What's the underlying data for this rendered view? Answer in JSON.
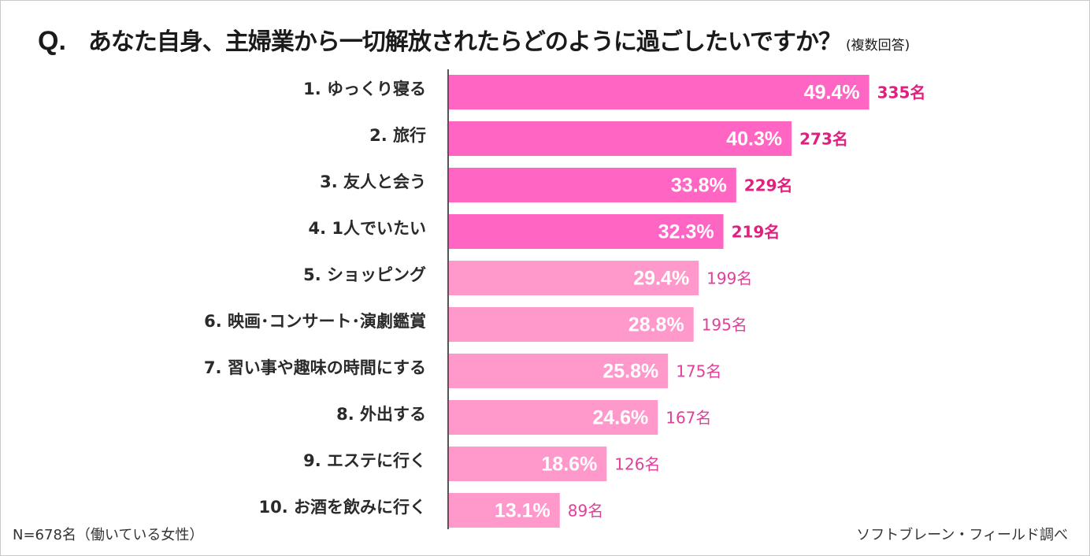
{
  "title": {
    "prefix": "Q.",
    "main": "あなた自身、主婦業から一切解放されたらどのように過ごしたいですか？",
    "note": "(複数回答)"
  },
  "footer": {
    "sample": "N=678名（働いている女性）",
    "source": "ソフトブレーン・フィールド調べ"
  },
  "colors": {
    "top_bar": "#ff66c4",
    "other_bar": "#ff99cc",
    "top_count": "#e0207f",
    "other_count": "#e0409a",
    "axis": "#555555"
  },
  "chart_data": {
    "type": "bar",
    "orientation": "horizontal",
    "title": "あなた自身、主婦業から一切解放されたらどのように過ごしたいですか？",
    "categories": [
      "1.  ゆっくり寝る",
      "2.  旅行",
      "3.  友人と会う",
      "4.  1人でいたい",
      "5.  ショッピング",
      "6.  映画･コンサート･演劇鑑賞",
      "7.  習い事や趣味の時間にする",
      "8.  外出する",
      "9.  エステに行く",
      "10.  お酒を飲みに行く"
    ],
    "values": [
      49.4,
      40.3,
      33.8,
      32.3,
      29.4,
      28.8,
      25.8,
      24.6,
      18.6,
      13.1
    ],
    "value_labels": [
      "49.4%",
      "40.3%",
      "33.8%",
      "32.3%",
      "29.4%",
      "28.8%",
      "25.8%",
      "24.6%",
      "18.6%",
      "13.1%"
    ],
    "counts": [
      "335名",
      "273名",
      "229名",
      "219名",
      "199名",
      "195名",
      "175名",
      "167名",
      "126名",
      "89名"
    ],
    "highlight_top": 4,
    "xlim": [
      0,
      62
    ],
    "grid": false,
    "legend": "none"
  }
}
